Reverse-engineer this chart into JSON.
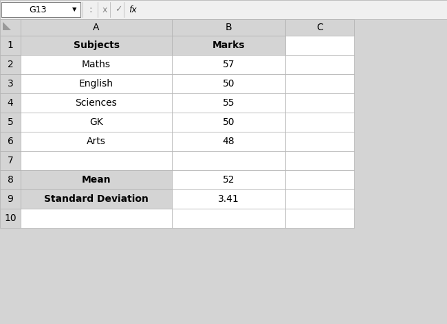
{
  "toolbar_cell": "G13",
  "col_headers": [
    "A",
    "B",
    "C"
  ],
  "header_row": [
    "Subjects",
    "Marks"
  ],
  "data_rows": [
    [
      "Maths",
      "57"
    ],
    [
      "English",
      "50"
    ],
    [
      "Sciences",
      "55"
    ],
    [
      "GK",
      "50"
    ],
    [
      "Arts",
      "48"
    ]
  ],
  "summary_rows": [
    [
      "Mean",
      "52"
    ],
    [
      "Standard Deviation",
      "3.41"
    ]
  ],
  "bg_color": "#d4d4d4",
  "white": "#ffffff",
  "header_fill": "#d4d4d4",
  "cell_text_color": "#000000",
  "toolbar_bg": "#f0f0f0",
  "grid_line_color": "#b0b0b0",
  "border_color": "#808080"
}
